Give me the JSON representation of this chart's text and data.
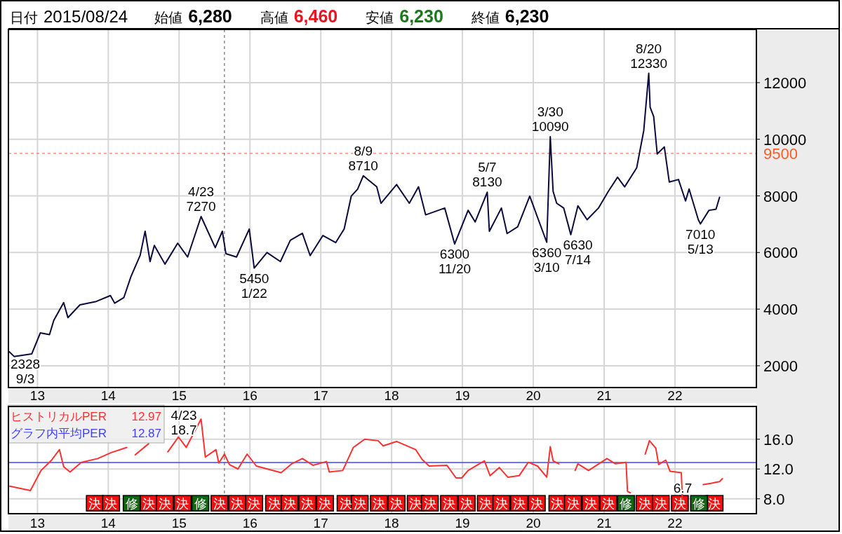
{
  "chart_data": [
    {
      "type": "line",
      "annotations": [
        "日付",
        "2015/08/24",
        "始値",
        "6,280",
        "高値",
        "6,460",
        "安値",
        "6,230",
        "終値",
        "6,230",
        {
          "text": "2328\n9/3",
          "x": 12.67,
          "y": 2328
        },
        {
          "text": "4/23\n7270",
          "x": 15.31,
          "y": 7270
        },
        {
          "text": "5450\n1/22",
          "x": 16.06,
          "y": 5450
        },
        {
          "text": "8/9\n8710",
          "x": 17.6,
          "y": 8710
        },
        {
          "text": "6300\n11/20",
          "x": 18.89,
          "y": 6300
        },
        {
          "text": "5/7\n8130",
          "x": 19.35,
          "y": 8130
        },
        {
          "text": "6360\n3/10",
          "x": 20.19,
          "y": 6360
        },
        {
          "text": "3/30\n10090",
          "x": 20.24,
          "y": 10090
        },
        {
          "text": "6630\n7/14",
          "x": 20.53,
          "y": 6630
        },
        {
          "text": "8/20\n12330",
          "x": 21.63,
          "y": 12330
        },
        {
          "text": "7010\n5/13",
          "x": 22.36,
          "y": 7010
        }
      ],
      "x": [
        12.6,
        12.67,
        12.92,
        13.04,
        13.17,
        13.23,
        13.37,
        13.43,
        13.6,
        13.83,
        14.03,
        14.09,
        14.22,
        14.32,
        14.45,
        14.52,
        14.59,
        14.65,
        14.8,
        14.98,
        15.12,
        15.31,
        15.51,
        15.61,
        15.66,
        15.81,
        15.99,
        16.06,
        16.24,
        16.43,
        16.57,
        16.74,
        16.85,
        17.03,
        17.21,
        17.33,
        17.43,
        17.52,
        17.6,
        17.79,
        17.85,
        18.07,
        18.25,
        18.38,
        18.48,
        18.75,
        18.89,
        19.08,
        19.18,
        19.35,
        19.38,
        19.55,
        19.63,
        19.78,
        19.95,
        20.19,
        20.24,
        20.28,
        20.33,
        20.43,
        20.53,
        20.63,
        20.76,
        20.92,
        21.06,
        21.19,
        21.29,
        21.46,
        21.56,
        21.63,
        21.65,
        21.7,
        21.75,
        21.85,
        21.92,
        22.05,
        22.15,
        22.2,
        22.33,
        22.36,
        22.48,
        22.58,
        22.63
      ],
      "series": [
        {
          "color": "#0a0a3c",
          "values": [
            2500,
            2328,
            2420,
            3160,
            3100,
            3600,
            4230,
            3700,
            4150,
            4270,
            4480,
            4210,
            4410,
            5150,
            5900,
            6750,
            5680,
            6250,
            5590,
            6330,
            5840,
            7270,
            6170,
            6750,
            5960,
            5840,
            6830,
            5450,
            6000,
            5680,
            6430,
            6680,
            5890,
            6600,
            6350,
            6830,
            7990,
            8240,
            8710,
            8320,
            7740,
            8400,
            7740,
            8320,
            7330,
            7570,
            6300,
            7490,
            7080,
            8130,
            6750,
            7570,
            6670,
            6910,
            7990,
            6360,
            10090,
            8160,
            7740,
            7570,
            6630,
            7650,
            7160,
            7570,
            8160,
            8660,
            8320,
            8990,
            10310,
            12330,
            11130,
            10800,
            9480,
            9730,
            8490,
            8580,
            7820,
            8240,
            7160,
            7010,
            7490,
            7530,
            7950
          ]
        }
      ],
      "xlim": [
        12.59,
        23.15
      ],
      "ylim": [
        1230,
        13880
      ],
      "xticks": [
        13,
        14,
        15,
        16,
        17,
        18,
        19,
        20,
        21,
        22
      ],
      "yticks": [
        2000,
        4000,
        6000,
        8000,
        10000,
        12000
      ],
      "ref_lines": [
        {
          "axis": "y",
          "value": 9500,
          "label": "9500",
          "color": "#ff5a28",
          "line_style": "dashed"
        },
        {
          "axis": "x",
          "value": 15.64,
          "line_style": "dashed"
        }
      ],
      "grid": true
    },
    {
      "type": "line",
      "annotations": [
        "12.97",
        "12.87",
        {
          "text": "4/23\n18.7",
          "x": 15.31,
          "y": 18.7
        },
        {
          "text": "6.7",
          "x": 22.11,
          "y": 6.7
        },
        {
          "text": "決",
          "x": 13.81,
          "y": 7.4
        },
        {
          "text": "決",
          "x": 14.04,
          "y": 7.4
        },
        {
          "text": "修",
          "x": 14.33,
          "y": 7.4
        },
        {
          "text": "決",
          "x": 14.57,
          "y": 7.4
        },
        {
          "text": "決",
          "x": 14.8,
          "y": 7.4
        },
        {
          "text": "決",
          "x": 15.05,
          "y": 7.4
        },
        {
          "text": "修",
          "x": 15.3,
          "y": 7.4
        },
        {
          "text": "決",
          "x": 15.57,
          "y": 7.4
        },
        {
          "text": "決",
          "x": 15.82,
          "y": 7.4
        },
        {
          "text": "決",
          "x": 16.06,
          "y": 7.4
        },
        {
          "text": "決",
          "x": 16.34,
          "y": 7.4
        },
        {
          "text": "決",
          "x": 16.56,
          "y": 7.4
        },
        {
          "text": "決",
          "x": 16.81,
          "y": 7.4
        },
        {
          "text": "決",
          "x": 17.06,
          "y": 7.4
        },
        {
          "text": "決",
          "x": 17.35,
          "y": 7.4
        },
        {
          "text": "決",
          "x": 17.55,
          "y": 7.4
        },
        {
          "text": "決",
          "x": 17.82,
          "y": 7.4
        },
        {
          "text": "決",
          "x": 18.07,
          "y": 7.4
        },
        {
          "text": "決",
          "x": 18.34,
          "y": 7.4
        },
        {
          "text": "決",
          "x": 18.54,
          "y": 7.4
        },
        {
          "text": "決",
          "x": 18.81,
          "y": 7.4
        },
        {
          "text": "決",
          "x": 19.06,
          "y": 7.4
        },
        {
          "text": "決",
          "x": 19.33,
          "y": 7.4
        },
        {
          "text": "決",
          "x": 19.55,
          "y": 7.4
        },
        {
          "text": "決",
          "x": 19.8,
          "y": 7.4
        },
        {
          "text": "決",
          "x": 20.05,
          "y": 7.4
        },
        {
          "text": "決",
          "x": 20.34,
          "y": 7.4
        },
        {
          "text": "決",
          "x": 20.56,
          "y": 7.4
        },
        {
          "text": "決",
          "x": 20.81,
          "y": 7.4
        },
        {
          "text": "決",
          "x": 21.06,
          "y": 7.4
        },
        {
          "text": "修",
          "x": 21.31,
          "y": 7.4
        },
        {
          "text": "決",
          "x": 21.57,
          "y": 7.4
        },
        {
          "text": "決",
          "x": 21.8,
          "y": 7.4
        },
        {
          "text": "決",
          "x": 22.07,
          "y": 7.4
        },
        {
          "text": "修",
          "x": 22.34,
          "y": 7.4
        },
        {
          "text": "決",
          "x": 22.56,
          "y": 7.4
        }
      ],
      "series": [
        {
          "type": "scatter",
          "marker": "square",
          "color": "#ee1111",
          "x": [
            13.81,
            14.04,
            14.57,
            14.8,
            15.05,
            15.57,
            15.82,
            16.06,
            16.34,
            16.56,
            16.81,
            17.06,
            17.35,
            17.55,
            17.82,
            18.07,
            18.34,
            18.54,
            18.81,
            19.06,
            19.33,
            19.55,
            19.8,
            20.05,
            20.34,
            20.56,
            20.81,
            21.06,
            21.57,
            21.8,
            22.07,
            22.56
          ],
          "values": [
            7.4,
            7.4,
            7.4,
            7.4,
            7.4,
            7.4,
            7.4,
            7.4,
            7.4,
            7.4,
            7.4,
            7.4,
            7.4,
            7.4,
            7.4,
            7.4,
            7.4,
            7.4,
            7.4,
            7.4,
            7.4,
            7.4,
            7.4,
            7.4,
            7.4,
            7.4,
            7.4,
            7.4,
            7.4,
            7.4,
            7.4,
            7.4
          ]
        },
        {
          "type": "scatter",
          "marker": "square",
          "color": "#116611",
          "x": [
            14.33,
            15.3,
            21.31,
            22.34
          ],
          "values": [
            7.4,
            7.4,
            7.4,
            7.4
          ]
        },
        {
          "color": "#ff3030",
          "x": [
            12.61,
            12.9,
            13.05,
            13.2,
            13.31,
            13.37,
            13.46,
            13.62,
            13.85,
            14.04,
            14.26
          ],
          "values": [
            9.7,
            9.1,
            11.8,
            13.2,
            14.6,
            12.3,
            11.6,
            12.9,
            13.4,
            14.2,
            14.9
          ]
        },
        {
          "color": "#ff3030",
          "x": [
            14.38,
            14.57
          ],
          "values": [
            13.9,
            15.4
          ]
        },
        {
          "name": "ヒストリカルPER",
          "color": "#ff3030",
          "x": [
            14.84,
            14.99,
            15.1,
            15.31,
            15.37,
            15.52,
            15.56,
            15.64,
            15.71,
            15.83,
            15.96,
            16.09,
            16.44,
            16.59,
            16.74,
            16.89,
            17.08,
            17.12,
            17.31,
            17.46,
            17.62,
            17.81,
            17.88,
            18.07,
            18.34,
            18.43,
            18.53,
            18.78,
            18.91,
            18.99,
            19.08,
            19.31,
            19.39,
            19.52,
            19.64,
            19.8,
            19.93,
            20.06,
            20.19,
            20.24,
            20.28,
            20.36
          ],
          "values": [
            14.3,
            16.3,
            14.9,
            18.7,
            13.6,
            14.6,
            12.8,
            14.0,
            12.6,
            12.0,
            14.0,
            12.4,
            11.5,
            12.7,
            13.4,
            12.5,
            13.0,
            11.6,
            11.8,
            14.9,
            16.0,
            15.8,
            15.1,
            15.7,
            14.6,
            13.3,
            12.4,
            12.5,
            10.8,
            10.8,
            11.8,
            13.1,
            11.1,
            12.2,
            10.9,
            11.1,
            12.9,
            12.4,
            10.9,
            15.0,
            13.1,
            12.7
          ]
        },
        {
          "color": "#ff3030",
          "x": [
            20.59,
            20.63,
            20.78,
            21.04,
            21.16,
            21.31,
            21.33,
            21.37
          ],
          "values": [
            11.8,
            12.7,
            11.8,
            13.4,
            12.7,
            12.9,
            9.0,
            8.8
          ]
        },
        {
          "color": "#ff3030",
          "x": [
            21.58,
            21.64,
            21.73,
            21.77,
            21.87,
            21.93,
            22.09,
            22.11
          ],
          "values": [
            14.0,
            15.8,
            14.8,
            12.6,
            13.2,
            11.7,
            11.5,
            6.7
          ]
        },
        {
          "color": "#ff3030",
          "x": [
            22.4,
            22.52,
            22.63,
            22.67
          ],
          "values": [
            9.9,
            10.1,
            10.3,
            10.7
          ]
        }
      ],
      "xlim": [
        12.59,
        23.15
      ],
      "ylim": [
        6.0,
        20.4
      ],
      "xticks": [
        13,
        14,
        15,
        16,
        17,
        18,
        19,
        20,
        21,
        22
      ],
      "yticks": [
        {
          "value": 8,
          "label": "8.0"
        },
        {
          "value": 12,
          "label": "12.0"
        },
        {
          "value": 16,
          "label": "16.0"
        }
      ],
      "ref_lines": [
        {
          "axis": "y",
          "value": 12.87,
          "label": "グラフ内平均PER",
          "color": "#4040ff"
        },
        {
          "axis": "x",
          "value": 15.64,
          "line_style": "dashed"
        }
      ],
      "grid": true,
      "legend": "top left"
    }
  ]
}
